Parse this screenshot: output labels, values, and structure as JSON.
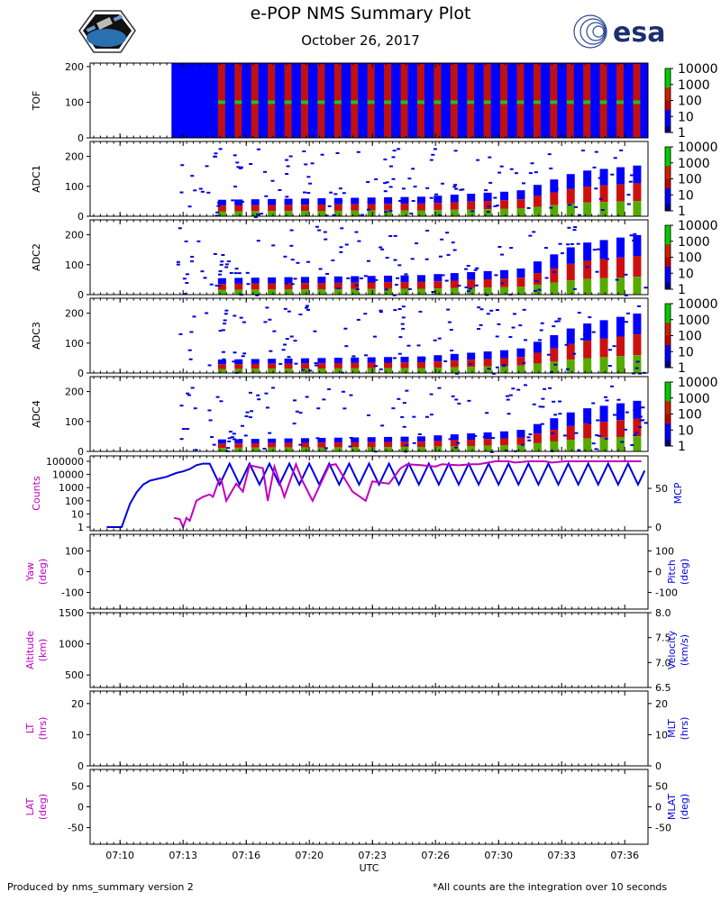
{
  "header": {
    "title": "e-POP NMS Summary Plot",
    "date": "October 26, 2017",
    "logo_left": "cassiope-mission-patch",
    "logo_right_text": "esa"
  },
  "footer": {
    "left": "Produced by nms_summary version 2",
    "right": "*All counts are the integration over 10 seconds"
  },
  "colors": {
    "spectrogram_background": "#0000ff",
    "magenta": "#c000c0",
    "blue": "#0000e0",
    "colorbar": [
      "#000080",
      "#0000ff",
      "#ff0000",
      "#00cc00"
    ]
  },
  "chart_data": [
    {
      "type": "heatmap",
      "id": "tof",
      "ylabel": "TOF",
      "ylim": [
        0,
        210
      ],
      "yticks": [
        0,
        100,
        200
      ],
      "colorbar": {
        "scale": "log",
        "ticks": [
          "1",
          "10",
          "100",
          "1000",
          "10000"
        ]
      },
      "data_start": "07:12:45",
      "dominant_band_center": 100
    },
    {
      "type": "heatmap",
      "id": "adc1",
      "ylabel": "ADC1",
      "ylim": [
        0,
        250
      ],
      "yticks": [
        0,
        100,
        200
      ],
      "colorbar": {
        "scale": "log",
        "ticks": [
          "1",
          "10",
          "100",
          "1000",
          "10000"
        ]
      },
      "column_top_trend": {
        "x": [
          "07:15",
          "07:20",
          "07:25",
          "07:30",
          "07:33",
          "07:36"
        ],
        "y": [
          55,
          60,
          65,
          85,
          150,
          170
        ]
      }
    },
    {
      "type": "heatmap",
      "id": "adc2",
      "ylabel": "ADC2",
      "ylim": [
        0,
        250
      ],
      "yticks": [
        0,
        100,
        200
      ],
      "colorbar": {
        "scale": "log",
        "ticks": [
          "1",
          "10",
          "100",
          "1000",
          "10000"
        ]
      },
      "column_top_trend": {
        "x": [
          "07:15",
          "07:20",
          "07:25",
          "07:30",
          "07:33",
          "07:36"
        ],
        "y": [
          55,
          60,
          65,
          85,
          170,
          200
        ]
      }
    },
    {
      "type": "heatmap",
      "id": "adc3",
      "ylabel": "ADC3",
      "ylim": [
        0,
        250
      ],
      "yticks": [
        0,
        100,
        200
      ],
      "colorbar": {
        "scale": "log",
        "ticks": [
          "1",
          "10",
          "100",
          "1000",
          "10000"
        ]
      },
      "column_top_trend": {
        "x": [
          "07:15",
          "07:20",
          "07:25",
          "07:30",
          "07:33",
          "07:36"
        ],
        "y": [
          45,
          50,
          55,
          80,
          160,
          200
        ]
      }
    },
    {
      "type": "heatmap",
      "id": "adc4",
      "ylabel": "ADC4",
      "ylim": [
        0,
        250
      ],
      "yticks": [
        0,
        100,
        200
      ],
      "colorbar": {
        "scale": "log",
        "ticks": [
          "1",
          "10",
          "100",
          "1000",
          "10000"
        ]
      },
      "column_top_trend": {
        "x": [
          "07:15",
          "07:20",
          "07:25",
          "07:30",
          "07:33",
          "07:36"
        ],
        "y": [
          40,
          45,
          50,
          70,
          140,
          170
        ]
      }
    },
    {
      "type": "line",
      "id": "counts_mcp",
      "ylabel_left": "Counts",
      "ylabel_right": "MCP",
      "left_scale": "log",
      "left_yticks": [
        "1",
        "10",
        "100",
        "1000",
        "10000",
        "100000"
      ],
      "right_yticks": [
        0,
        50
      ],
      "series": [
        {
          "name": "Counts",
          "axis": "left",
          "color": "#c000c0",
          "x": [
            "07:12:53",
            "07:13:10",
            "07:13:20",
            "07:13:30",
            "07:13:40",
            "07:14:00",
            "07:14:20",
            "07:14:40",
            "07:14:50",
            "07:15:10",
            "07:15:15",
            "07:15:30",
            "07:16:00",
            "07:16:20",
            "07:16:40",
            "07:17:20",
            "07:17:35",
            "07:17:55",
            "07:18:25",
            "07:19:00",
            "07:19:20",
            "07:19:50",
            "07:20:40",
            "07:21:00",
            "07:21:50",
            "07:22:30",
            "07:22:50",
            "07:23:40",
            "07:24:15",
            "07:24:35",
            "07:25:20",
            "07:26:00",
            "07:26:20",
            "07:27:10",
            "07:27:50",
            "07:28:10",
            "07:29:00",
            "07:29:40",
            "07:30:00",
            "07:30:40",
            "07:31:30",
            "07:31:50",
            "07:32:30",
            "07:32:50",
            "07:33:30",
            "07:34:20",
            "07:34:50",
            "07:35:40",
            "07:36:20"
          ],
          "y": [
            5,
            4,
            1,
            5,
            3,
            100,
            200,
            300,
            200,
            5000,
            4000,
            100,
            2000,
            500,
            50000,
            30000,
            100,
            40000,
            200,
            60000,
            3000,
            100,
            50000,
            60000,
            500,
            100,
            3000,
            2000,
            30000,
            60000,
            50000,
            40000,
            60000,
            50000,
            60000,
            60000,
            100000,
            100000,
            80000,
            100000,
            100000,
            80000,
            100000,
            100000,
            100000,
            100000,
            100000,
            100000,
            100000
          ]
        },
        {
          "name": "MCP",
          "axis": "right",
          "color": "#0000e0",
          "x": [
            "07:09:30",
            "07:10:00",
            "07:10:15",
            "07:10:40",
            "07:11:00",
            "07:11:20",
            "07:11:40",
            "07:12:00",
            "07:12:30",
            "07:13:00",
            "07:13:20",
            "07:13:40",
            "07:14:00",
            "07:14:20",
            "07:14:40"
          ],
          "y": [
            0,
            0,
            0,
            30,
            45,
            55,
            60,
            62,
            65,
            70,
            72,
            75,
            80,
            82,
            82
          ]
        }
      ],
      "mcp_oscillation": {
        "start": "07:14:40",
        "end": "07:36:30",
        "low": 55,
        "high": 82,
        "period_seconds": 60
      }
    },
    {
      "type": "line",
      "id": "attitude",
      "ylabel_left": "Yaw\n(deg)",
      "ylabel_right": "Pitch\n(deg)",
      "left_ylim": [
        -180,
        180
      ],
      "left_yticks": [
        -100,
        0,
        100
      ],
      "right_yticks": [
        -100,
        0,
        100
      ],
      "series": []
    },
    {
      "type": "line",
      "id": "altitude",
      "ylabel_left": "Altitude\n(km)",
      "ylabel_right": "Velocity\n(km/s)",
      "left_ylim": [
        300,
        1500
      ],
      "left_yticks": [
        500,
        1000,
        1500
      ],
      "right_ylim": [
        6.5,
        8.0
      ],
      "right_yticks": [
        "6.5",
        "7.0",
        "7.5",
        "8.0"
      ],
      "series": []
    },
    {
      "type": "line",
      "id": "time",
      "ylabel_left": "LT\n(hrs)",
      "ylabel_right": "MLT\n(hrs)",
      "left_ylim": [
        0,
        24
      ],
      "left_yticks": [
        0,
        10,
        20
      ],
      "right_yticks": [
        0,
        10,
        20
      ],
      "series": []
    },
    {
      "type": "line",
      "id": "latitude",
      "ylabel_left": "LAT\n(deg)",
      "ylabel_right": "MLAT\n(deg)",
      "left_ylim": [
        -90,
        90
      ],
      "left_yticks": [
        -50,
        0,
        50
      ],
      "right_yticks": [
        -50,
        0,
        50
      ],
      "series": []
    }
  ],
  "x_axis": {
    "label": "UTC",
    "range": [
      "07:08:40",
      "07:36:40"
    ],
    "tick_times": [
      "07:10:10",
      "07:13:20",
      "07:16:30",
      "07:19:40",
      "07:22:50",
      "07:26:00",
      "07:29:10",
      "07:32:20",
      "07:35:30"
    ],
    "tick_labels": [
      "07:10",
      "07:13",
      "07:16",
      "07:20",
      "07:23",
      "07:26",
      "07:30",
      "07:33",
      "07:36"
    ]
  }
}
